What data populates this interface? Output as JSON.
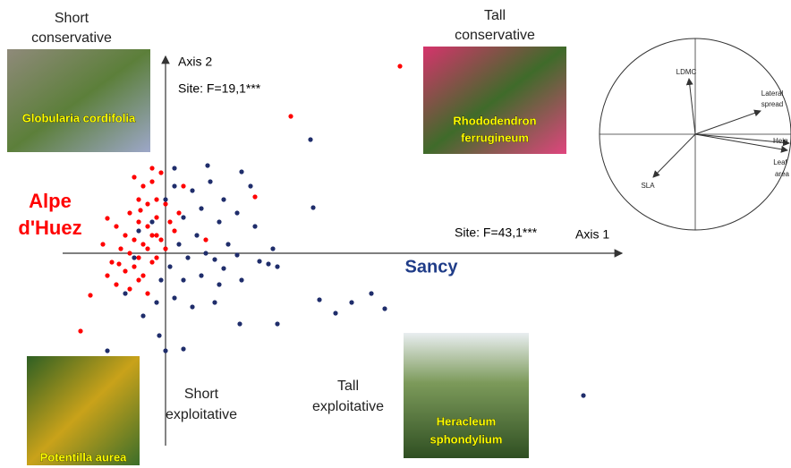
{
  "chart_data": {
    "type": "scatter",
    "x_label": "Axis 1",
    "y_label": "Axis 2",
    "xlim": [
      -1.15,
      5.1
    ],
    "ylim": [
      -2.15,
      2.2
    ],
    "stat_y": "Site: F=19,1***",
    "stat_x": "Site: F=43,1***",
    "quadrant_labels": [
      [
        "Short",
        "conservative"
      ],
      [
        "Tall",
        "conservative"
      ],
      [
        "Short",
        "exploitative"
      ],
      [
        "Tall",
        "exploitative"
      ]
    ],
    "photo_captions": [
      [
        "Globularia cordifolia"
      ],
      [
        "Rhododendron",
        "ferrugineum"
      ],
      [
        "Potentilla aurea"
      ],
      [
        "Heracleum",
        "sphondylium"
      ]
    ],
    "inset_labels": [
      "LDMC",
      "Lateral",
      "spread",
      "Heig",
      "Leaf",
      "area",
      "SLA"
    ],
    "series": [
      {
        "name": "Alpe d'Huez",
        "color": "#ff0000",
        "x": [
          2.62,
          1.4,
          1.0,
          0.45,
          -0.95,
          -0.84,
          -0.65,
          -0.35,
          -0.25,
          -0.15,
          -0.05,
          -0.3,
          -0.2,
          -0.1,
          0.0,
          -0.4,
          -0.3,
          -0.2,
          -0.1,
          0.05,
          -0.45,
          -0.35,
          -0.25,
          -0.15,
          -0.05,
          0.1,
          -0.5,
          -0.4,
          -0.3,
          -0.2,
          -0.1,
          0.0,
          -0.6,
          -0.45,
          -0.35,
          -0.25,
          -0.15,
          -0.55,
          -0.4,
          -0.3,
          -0.2,
          -0.65,
          -0.7,
          -0.55,
          -0.1,
          0.15,
          0.2,
          -0.15,
          -0.28,
          -0.52
        ],
        "values": [
          2.09,
          1.53,
          0.63,
          0.15,
          -0.87,
          -0.47,
          0.39,
          0.85,
          0.75,
          0.8,
          0.9,
          0.6,
          0.55,
          0.6,
          0.55,
          0.45,
          0.35,
          0.3,
          0.4,
          0.35,
          0.2,
          0.15,
          0.1,
          0.2,
          0.15,
          0.25,
          0.05,
          0.0,
          -0.05,
          0.05,
          -0.05,
          0.05,
          -0.1,
          -0.2,
          -0.15,
          -0.25,
          -0.1,
          -0.35,
          -0.4,
          -0.3,
          -0.45,
          -0.25,
          0.1,
          0.3,
          0.2,
          0.45,
          0.75,
          0.95,
          0.48,
          -0.12
        ]
      },
      {
        "name": "Sancy",
        "color": "#1f2d6b",
        "x": [
          1.62,
          1.65,
          0.85,
          0.47,
          4.67,
          2.45,
          2.3,
          2.08,
          1.9,
          1.72,
          1.25,
          0.83,
          0.2,
          0.0,
          -0.65,
          -0.07,
          1.15,
          1.25,
          1.05,
          0.8,
          0.65,
          0.55,
          0.5,
          0.3,
          0.1,
          0.0,
          0.4,
          0.2,
          0.6,
          0.8,
          1.0,
          0.35,
          0.15,
          0.7,
          0.45,
          0.25,
          0.05,
          -0.05,
          0.2,
          0.4,
          0.6,
          0.85,
          0.1,
          -0.1,
          0.3,
          -0.25,
          -0.35,
          -0.3,
          -0.15,
          0.1,
          0.95,
          1.2,
          0.55,
          -0.45,
          0.65
        ],
        "values": [
          1.27,
          0.51,
          0.91,
          0.98,
          -1.59,
          -0.62,
          -0.45,
          -0.55,
          -0.67,
          -0.52,
          -0.79,
          -0.79,
          -1.07,
          -1.09,
          -1.09,
          -0.92,
          -0.12,
          -0.15,
          -0.09,
          -0.02,
          -0.17,
          -0.07,
          0.8,
          0.7,
          0.75,
          0.6,
          0.5,
          0.4,
          0.35,
          0.45,
          0.3,
          0.2,
          0.1,
          0.1,
          0.0,
          -0.05,
          -0.15,
          -0.3,
          -0.3,
          -0.25,
          -0.35,
          -0.3,
          -0.5,
          -0.55,
          -0.6,
          -0.7,
          -0.05,
          0.25,
          0.35,
          0.95,
          0.75,
          0.05,
          -0.55,
          -0.45,
          0.6
        ]
      }
    ]
  }
}
